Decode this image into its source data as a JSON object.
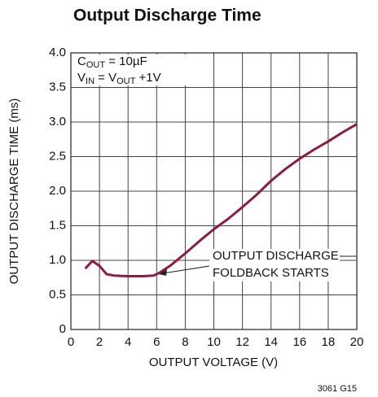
{
  "chart_data": {
    "type": "line",
    "title": "Output Discharge Time",
    "x_label": "OUTPUT VOLTAGE (V)",
    "y_label": "OUTPUT DISCHARGE TIME (ms)",
    "conditions": [
      [
        "C",
        "OUT",
        " = 10µF"
      ],
      [
        "V",
        "IN",
        " = V",
        "OUT",
        " +1V"
      ]
    ],
    "callout": [
      "OUTPUT DISCHARGE",
      "FOLDBACK STARTS"
    ],
    "footnote": "3061 G15",
    "xlim": [
      0,
      20
    ],
    "xticks": [
      0,
      2,
      4,
      6,
      8,
      10,
      12,
      14,
      16,
      18,
      20
    ],
    "ylim": [
      0,
      4
    ],
    "yticks": [
      0,
      0.5,
      {
        "value": 1,
        "label": "1.0"
      },
      1.5,
      {
        "value": 2,
        "label": "2.0"
      },
      2.5,
      {
        "value": 3,
        "label": "3.0"
      },
      3.5,
      {
        "value": 4,
        "label": "4.0"
      }
    ],
    "grid": true,
    "series": [
      {
        "color": "#8c1d40",
        "x": [
          1,
          1.5,
          2,
          2.5,
          3,
          4,
          5,
          5.8,
          6.2,
          7,
          8,
          9,
          10,
          11,
          12,
          13,
          14,
          15,
          16,
          17,
          18,
          19,
          20
        ],
        "values": [
          0.88,
          0.99,
          0.92,
          0.8,
          0.78,
          0.77,
          0.77,
          0.78,
          0.82,
          0.93,
          1.1,
          1.28,
          1.45,
          1.6,
          1.77,
          1.95,
          2.15,
          2.32,
          2.47,
          2.6,
          2.72,
          2.85,
          2.97
        ]
      }
    ]
  }
}
